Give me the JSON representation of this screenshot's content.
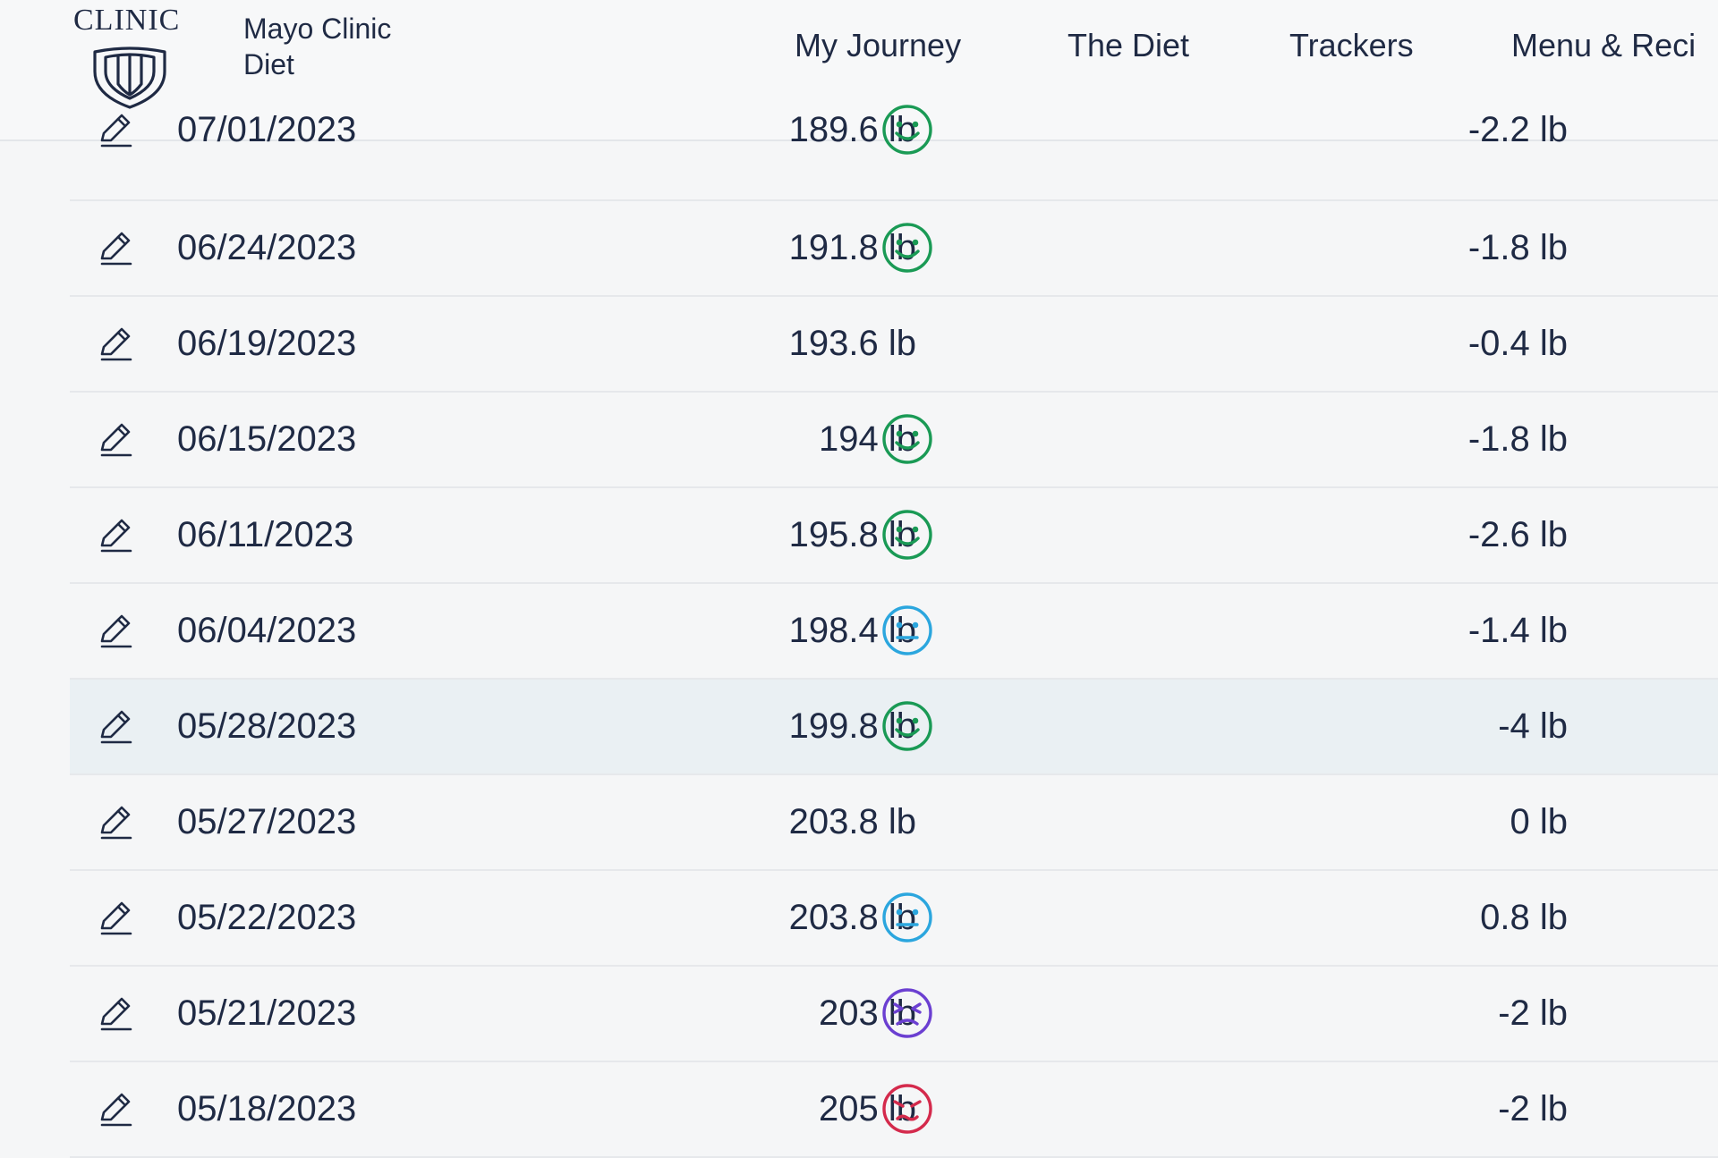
{
  "brand": {
    "logo_text": "CLINIC",
    "name": "Mayo Clinic Diet"
  },
  "nav": {
    "items": [
      "My Journey",
      "The Diet",
      "Trackers",
      "Menu & Reci"
    ]
  },
  "colors": {
    "happy": "#1a9a55",
    "neutral": "#2ba6de",
    "frustrated": "#6b3fd1",
    "angry": "#d42a4c"
  },
  "entries": [
    {
      "date": "07/01/2023",
      "weight": "189.6 lb",
      "mood": "happy-icon",
      "change": "-2.2 lb"
    },
    {
      "date": "06/24/2023",
      "weight": "191.8 lb",
      "mood": "happy-icon",
      "change": "-1.8 lb"
    },
    {
      "date": "06/19/2023",
      "weight": "193.6 lb",
      "mood": "",
      "change": "-0.4 lb"
    },
    {
      "date": "06/15/2023",
      "weight": "194 lb",
      "mood": "happy-icon",
      "change": "-1.8 lb"
    },
    {
      "date": "06/11/2023",
      "weight": "195.8 lb",
      "mood": "happy-icon",
      "change": "-2.6 lb"
    },
    {
      "date": "06/04/2023",
      "weight": "198.4 lb",
      "mood": "neutral-icon",
      "change": "-1.4 lb"
    },
    {
      "date": "05/28/2023",
      "weight": "199.8 lb",
      "mood": "happy-icon",
      "change": "-4 lb"
    },
    {
      "date": "05/27/2023",
      "weight": "203.8 lb",
      "mood": "",
      "change": "0 lb"
    },
    {
      "date": "05/22/2023",
      "weight": "203.8 lb",
      "mood": "neutral-icon",
      "change": "0.8 lb"
    },
    {
      "date": "05/21/2023",
      "weight": "203 lb",
      "mood": "frustrated-icon",
      "change": "-2 lb"
    },
    {
      "date": "05/18/2023",
      "weight": "205 lb",
      "mood": "angry-icon",
      "change": "-2 lb"
    }
  ]
}
